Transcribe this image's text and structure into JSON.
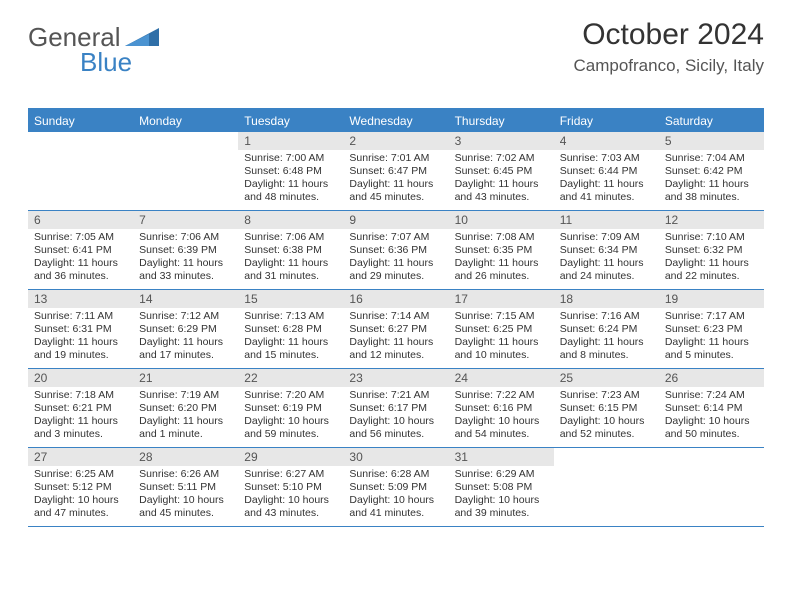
{
  "brand": {
    "general": "General",
    "blue": "Blue"
  },
  "title": {
    "month": "October 2024",
    "location": "Campofranco, Sicily, Italy"
  },
  "accent_color": "#3a82c4",
  "daynum_bg": "#e7e7e7",
  "day_headers": [
    "Sunday",
    "Monday",
    "Tuesday",
    "Wednesday",
    "Thursday",
    "Friday",
    "Saturday"
  ],
  "weeks": [
    [
      {
        "n": "",
        "sr": "",
        "ss": "",
        "dl": ""
      },
      {
        "n": "",
        "sr": "",
        "ss": "",
        "dl": ""
      },
      {
        "n": "1",
        "sr": "Sunrise: 7:00 AM",
        "ss": "Sunset: 6:48 PM",
        "dl": "Daylight: 11 hours and 48 minutes."
      },
      {
        "n": "2",
        "sr": "Sunrise: 7:01 AM",
        "ss": "Sunset: 6:47 PM",
        "dl": "Daylight: 11 hours and 45 minutes."
      },
      {
        "n": "3",
        "sr": "Sunrise: 7:02 AM",
        "ss": "Sunset: 6:45 PM",
        "dl": "Daylight: 11 hours and 43 minutes."
      },
      {
        "n": "4",
        "sr": "Sunrise: 7:03 AM",
        "ss": "Sunset: 6:44 PM",
        "dl": "Daylight: 11 hours and 41 minutes."
      },
      {
        "n": "5",
        "sr": "Sunrise: 7:04 AM",
        "ss": "Sunset: 6:42 PM",
        "dl": "Daylight: 11 hours and 38 minutes."
      }
    ],
    [
      {
        "n": "6",
        "sr": "Sunrise: 7:05 AM",
        "ss": "Sunset: 6:41 PM",
        "dl": "Daylight: 11 hours and 36 minutes."
      },
      {
        "n": "7",
        "sr": "Sunrise: 7:06 AM",
        "ss": "Sunset: 6:39 PM",
        "dl": "Daylight: 11 hours and 33 minutes."
      },
      {
        "n": "8",
        "sr": "Sunrise: 7:06 AM",
        "ss": "Sunset: 6:38 PM",
        "dl": "Daylight: 11 hours and 31 minutes."
      },
      {
        "n": "9",
        "sr": "Sunrise: 7:07 AM",
        "ss": "Sunset: 6:36 PM",
        "dl": "Daylight: 11 hours and 29 minutes."
      },
      {
        "n": "10",
        "sr": "Sunrise: 7:08 AM",
        "ss": "Sunset: 6:35 PM",
        "dl": "Daylight: 11 hours and 26 minutes."
      },
      {
        "n": "11",
        "sr": "Sunrise: 7:09 AM",
        "ss": "Sunset: 6:34 PM",
        "dl": "Daylight: 11 hours and 24 minutes."
      },
      {
        "n": "12",
        "sr": "Sunrise: 7:10 AM",
        "ss": "Sunset: 6:32 PM",
        "dl": "Daylight: 11 hours and 22 minutes."
      }
    ],
    [
      {
        "n": "13",
        "sr": "Sunrise: 7:11 AM",
        "ss": "Sunset: 6:31 PM",
        "dl": "Daylight: 11 hours and 19 minutes."
      },
      {
        "n": "14",
        "sr": "Sunrise: 7:12 AM",
        "ss": "Sunset: 6:29 PM",
        "dl": "Daylight: 11 hours and 17 minutes."
      },
      {
        "n": "15",
        "sr": "Sunrise: 7:13 AM",
        "ss": "Sunset: 6:28 PM",
        "dl": "Daylight: 11 hours and 15 minutes."
      },
      {
        "n": "16",
        "sr": "Sunrise: 7:14 AM",
        "ss": "Sunset: 6:27 PM",
        "dl": "Daylight: 11 hours and 12 minutes."
      },
      {
        "n": "17",
        "sr": "Sunrise: 7:15 AM",
        "ss": "Sunset: 6:25 PM",
        "dl": "Daylight: 11 hours and 10 minutes."
      },
      {
        "n": "18",
        "sr": "Sunrise: 7:16 AM",
        "ss": "Sunset: 6:24 PM",
        "dl": "Daylight: 11 hours and 8 minutes."
      },
      {
        "n": "19",
        "sr": "Sunrise: 7:17 AM",
        "ss": "Sunset: 6:23 PM",
        "dl": "Daylight: 11 hours and 5 minutes."
      }
    ],
    [
      {
        "n": "20",
        "sr": "Sunrise: 7:18 AM",
        "ss": "Sunset: 6:21 PM",
        "dl": "Daylight: 11 hours and 3 minutes."
      },
      {
        "n": "21",
        "sr": "Sunrise: 7:19 AM",
        "ss": "Sunset: 6:20 PM",
        "dl": "Daylight: 11 hours and 1 minute."
      },
      {
        "n": "22",
        "sr": "Sunrise: 7:20 AM",
        "ss": "Sunset: 6:19 PM",
        "dl": "Daylight: 10 hours and 59 minutes."
      },
      {
        "n": "23",
        "sr": "Sunrise: 7:21 AM",
        "ss": "Sunset: 6:17 PM",
        "dl": "Daylight: 10 hours and 56 minutes."
      },
      {
        "n": "24",
        "sr": "Sunrise: 7:22 AM",
        "ss": "Sunset: 6:16 PM",
        "dl": "Daylight: 10 hours and 54 minutes."
      },
      {
        "n": "25",
        "sr": "Sunrise: 7:23 AM",
        "ss": "Sunset: 6:15 PM",
        "dl": "Daylight: 10 hours and 52 minutes."
      },
      {
        "n": "26",
        "sr": "Sunrise: 7:24 AM",
        "ss": "Sunset: 6:14 PM",
        "dl": "Daylight: 10 hours and 50 minutes."
      }
    ],
    [
      {
        "n": "27",
        "sr": "Sunrise: 6:25 AM",
        "ss": "Sunset: 5:12 PM",
        "dl": "Daylight: 10 hours and 47 minutes."
      },
      {
        "n": "28",
        "sr": "Sunrise: 6:26 AM",
        "ss": "Sunset: 5:11 PM",
        "dl": "Daylight: 10 hours and 45 minutes."
      },
      {
        "n": "29",
        "sr": "Sunrise: 6:27 AM",
        "ss": "Sunset: 5:10 PM",
        "dl": "Daylight: 10 hours and 43 minutes."
      },
      {
        "n": "30",
        "sr": "Sunrise: 6:28 AM",
        "ss": "Sunset: 5:09 PM",
        "dl": "Daylight: 10 hours and 41 minutes."
      },
      {
        "n": "31",
        "sr": "Sunrise: 6:29 AM",
        "ss": "Sunset: 5:08 PM",
        "dl": "Daylight: 10 hours and 39 minutes."
      },
      {
        "n": "",
        "sr": "",
        "ss": "",
        "dl": ""
      },
      {
        "n": "",
        "sr": "",
        "ss": "",
        "dl": ""
      }
    ]
  ]
}
